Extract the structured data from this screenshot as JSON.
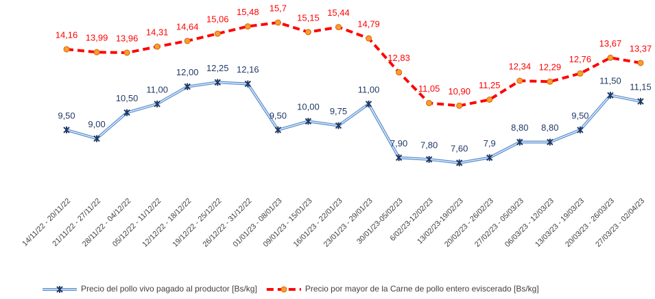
{
  "chart_data": {
    "type": "line",
    "categories": [
      "14/11/22 - 20/11/22",
      "21/11/22 - 27/11/22",
      "28/11/22 - 04/12/22",
      "05/12/22 - 11/12/22",
      "12/12/22 - 18/12/22",
      "19/12/22 - 25/12/22",
      "26/12/22 - 31/12/22",
      "01/01/23 - 08/01/23",
      "09/01/23 - 15/01/23",
      "16/01/23 - 22/01/23",
      "23/01/23 - 29/01/23",
      "30/01/23-05/02/23",
      "6/02/23-12/02/23",
      "13/02/23-19/02/23",
      "20/02/23 - 26/02/23",
      "27/02/23 - 05/03/23",
      "06/03/23 - 12/03/23",
      "13/03/23 - 19/03/23",
      "20/03/23 - 26/03/23",
      "27/03/23 - 02/04/23"
    ],
    "series": [
      {
        "name": "Precio del pollo vivo pagado al productor [Bs/kg]",
        "color": "#1f3864",
        "values": [
          9.5,
          9.0,
          10.5,
          11.0,
          12.0,
          12.25,
          12.16,
          9.5,
          10.0,
          9.75,
          11.0,
          7.9,
          7.8,
          7.6,
          7.9,
          8.8,
          8.8,
          9.5,
          11.5,
          11.15
        ],
        "value_labels": [
          "9,50",
          "9,00",
          "10,50",
          "11,00",
          "12,00",
          "12,25",
          "12,16",
          "9,50",
          "10,00",
          "9,75",
          "11,00",
          "7,90",
          "7,80",
          "7,60",
          "7,9",
          "8,80",
          "8,80",
          "9,50",
          "11,50",
          "11,15"
        ]
      },
      {
        "name": "Precio por mayor de la Carne de pollo entero eviscerado [Bs/kg]",
        "color": "#ff0000",
        "values": [
          14.16,
          13.99,
          13.96,
          14.31,
          14.64,
          15.06,
          15.48,
          15.7,
          15.15,
          15.44,
          14.79,
          12.83,
          11.05,
          10.9,
          11.25,
          12.34,
          12.29,
          12.76,
          13.67,
          13.37
        ],
        "value_labels": [
          "14,16",
          "13,99",
          "13,96",
          "14,31",
          "14,64",
          "15,06",
          "15,48",
          "15,7",
          "15,15",
          "15,44",
          "14,79",
          "12,83",
          "11,05",
          "10,90",
          "11,25",
          "12,34",
          "12,29",
          "12,76",
          "13,67",
          "13,37"
        ]
      }
    ]
  }
}
